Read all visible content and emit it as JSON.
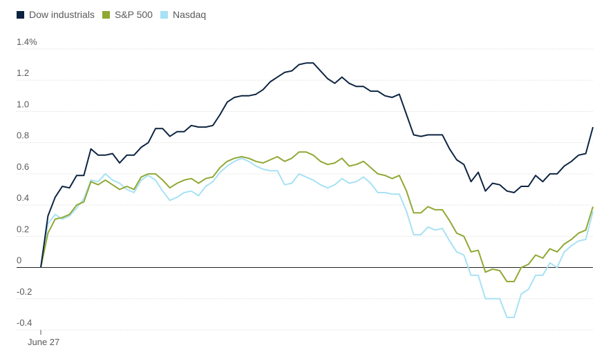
{
  "chart_data": {
    "type": "line",
    "title": "",
    "xlabel": "",
    "ylabel": "",
    "ylim": [
      -0.4,
      1.4
    ],
    "y_ticks": [
      {
        "value": 1.4,
        "label": "1.4%"
      },
      {
        "value": 1.2,
        "label": "1.2"
      },
      {
        "value": 1.0,
        "label": "1.0"
      },
      {
        "value": 0.8,
        "label": "0.8"
      },
      {
        "value": 0.6,
        "label": "0.6"
      },
      {
        "value": 0.4,
        "label": "0.4"
      },
      {
        "value": 0.2,
        "label": "0.2"
      },
      {
        "value": 0,
        "label": "0"
      },
      {
        "value": -0.2,
        "label": "-0.2"
      },
      {
        "value": -0.4,
        "label": "-0.4"
      }
    ],
    "x_tick_label": "June 27",
    "grid": true,
    "legend_position": "top-left",
    "series": [
      {
        "name": "Dow industrials",
        "color": "#0c2340",
        "values": [
          0,
          0.33,
          0.45,
          0.52,
          0.51,
          0.59,
          0.59,
          0.76,
          0.72,
          0.72,
          0.73,
          0.67,
          0.72,
          0.72,
          0.77,
          0.8,
          0.89,
          0.89,
          0.84,
          0.87,
          0.87,
          0.91,
          0.9,
          0.9,
          0.91,
          0.98,
          1.06,
          1.09,
          1.1,
          1.1,
          1.11,
          1.14,
          1.19,
          1.22,
          1.25,
          1.26,
          1.3,
          1.31,
          1.31,
          1.26,
          1.21,
          1.18,
          1.22,
          1.18,
          1.16,
          1.16,
          1.13,
          1.13,
          1.1,
          1.09,
          1.11,
          0.98,
          0.85,
          0.84,
          0.85,
          0.85,
          0.85,
          0.76,
          0.69,
          0.66,
          0.55,
          0.61,
          0.49,
          0.54,
          0.53,
          0.49,
          0.48,
          0.52,
          0.52,
          0.59,
          0.55,
          0.6,
          0.6,
          0.65,
          0.68,
          0.72,
          0.73,
          0.9
        ]
      },
      {
        "name": "S&P 500",
        "color": "#8fa833",
        "values": [
          0,
          0.22,
          0.31,
          0.32,
          0.34,
          0.4,
          0.42,
          0.55,
          0.53,
          0.56,
          0.53,
          0.5,
          0.52,
          0.5,
          0.58,
          0.6,
          0.6,
          0.56,
          0.51,
          0.54,
          0.56,
          0.57,
          0.54,
          0.57,
          0.58,
          0.64,
          0.68,
          0.7,
          0.71,
          0.7,
          0.68,
          0.67,
          0.69,
          0.71,
          0.68,
          0.7,
          0.74,
          0.74,
          0.72,
          0.68,
          0.66,
          0.67,
          0.7,
          0.65,
          0.66,
          0.68,
          0.64,
          0.6,
          0.59,
          0.57,
          0.59,
          0.49,
          0.35,
          0.35,
          0.39,
          0.37,
          0.37,
          0.3,
          0.22,
          0.2,
          0.1,
          0.11,
          -0.03,
          -0.01,
          -0.02,
          -0.09,
          -0.09,
          0.0,
          0.02,
          0.08,
          0.06,
          0.12,
          0.1,
          0.15,
          0.18,
          0.22,
          0.24,
          0.39
        ]
      },
      {
        "name": "Nasdaq",
        "color": "#a7e1f4",
        "values": [
          0,
          0.28,
          0.34,
          0.31,
          0.33,
          0.38,
          0.44,
          0.56,
          0.55,
          0.6,
          0.56,
          0.54,
          0.5,
          0.48,
          0.56,
          0.59,
          0.56,
          0.49,
          0.43,
          0.45,
          0.48,
          0.49,
          0.46,
          0.52,
          0.55,
          0.61,
          0.65,
          0.68,
          0.7,
          0.68,
          0.65,
          0.63,
          0.62,
          0.62,
          0.53,
          0.54,
          0.6,
          0.58,
          0.56,
          0.53,
          0.51,
          0.53,
          0.57,
          0.54,
          0.55,
          0.58,
          0.54,
          0.48,
          0.48,
          0.47,
          0.47,
          0.36,
          0.21,
          0.21,
          0.26,
          0.24,
          0.25,
          0.17,
          0.1,
          0.08,
          -0.05,
          -0.05,
          -0.2,
          -0.2,
          -0.2,
          -0.32,
          -0.32,
          -0.17,
          -0.14,
          -0.05,
          -0.05,
          0.03,
          0.0,
          0.1,
          0.14,
          0.17,
          0.18,
          0.36
        ]
      }
    ]
  }
}
